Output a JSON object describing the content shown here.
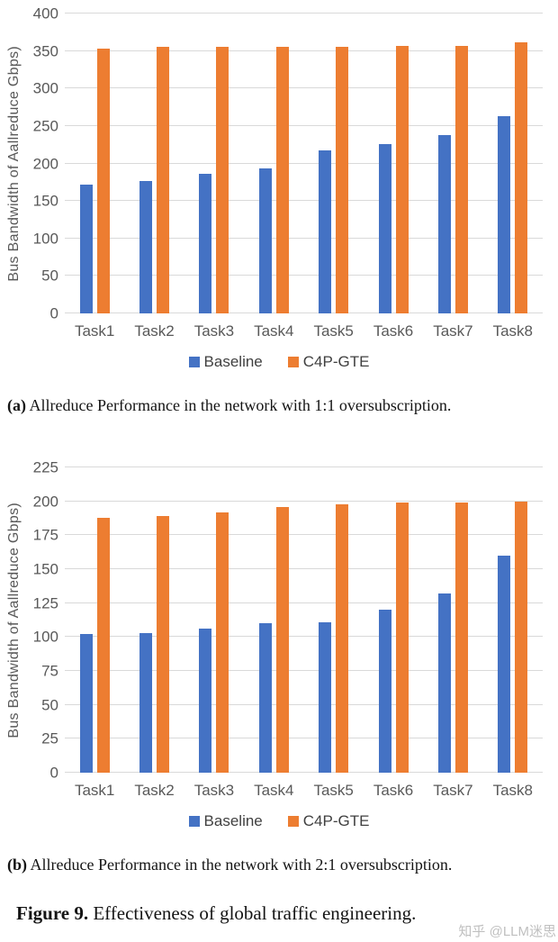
{
  "watermark": "知乎 @LLM迷思",
  "colors": {
    "baseline": "#4472C4",
    "c4p_gte": "#ED7D31",
    "gridline": "#D9D9D9",
    "axis_text": "#595959",
    "legend_text": "#404040"
  },
  "figure_caption": {
    "label": "Figure 9.",
    "text": "Effectiveness of global traffic engineering."
  },
  "chart_data": [
    {
      "type": "bar",
      "ylabel": "Bus Bandwidth of Aallreduce Gbps)",
      "categories": [
        "Task1",
        "Task2",
        "Task3",
        "Task4",
        "Task5",
        "Task6",
        "Task7",
        "Task8"
      ],
      "series": [
        {
          "name": "Baseline",
          "color": "#4472C4",
          "values": [
            172,
            177,
            186,
            193,
            218,
            226,
            238,
            263
          ]
        },
        {
          "name": "C4P-GTE",
          "color": "#ED7D31",
          "values": [
            353,
            355,
            355,
            355,
            355,
            357,
            357,
            361
          ]
        }
      ],
      "ylim": [
        0,
        400
      ],
      "ytick_step": 50,
      "grid": true,
      "legend_position": "bottom",
      "caption_label": "(a)",
      "caption_text": "Allreduce Performance in the network with 1:1 oversubscription."
    },
    {
      "type": "bar",
      "ylabel": "Bus Bandwidth of Aallreduce Gbps)",
      "categories": [
        "Task1",
        "Task2",
        "Task3",
        "Task4",
        "Task5",
        "Task6",
        "Task7",
        "Task8"
      ],
      "series": [
        {
          "name": "Baseline",
          "color": "#4472C4",
          "values": [
            102,
            103,
            106,
            110,
            111,
            120,
            132,
            160
          ]
        },
        {
          "name": "C4P-GTE",
          "color": "#ED7D31",
          "values": [
            188,
            189,
            192,
            196,
            198,
            199,
            199,
            200
          ]
        }
      ],
      "ylim": [
        0,
        225
      ],
      "ytick_step": 25,
      "grid": true,
      "legend_position": "bottom",
      "caption_label": "(b)",
      "caption_text": "Allreduce Performance in the network with 2:1 oversubscription."
    }
  ]
}
